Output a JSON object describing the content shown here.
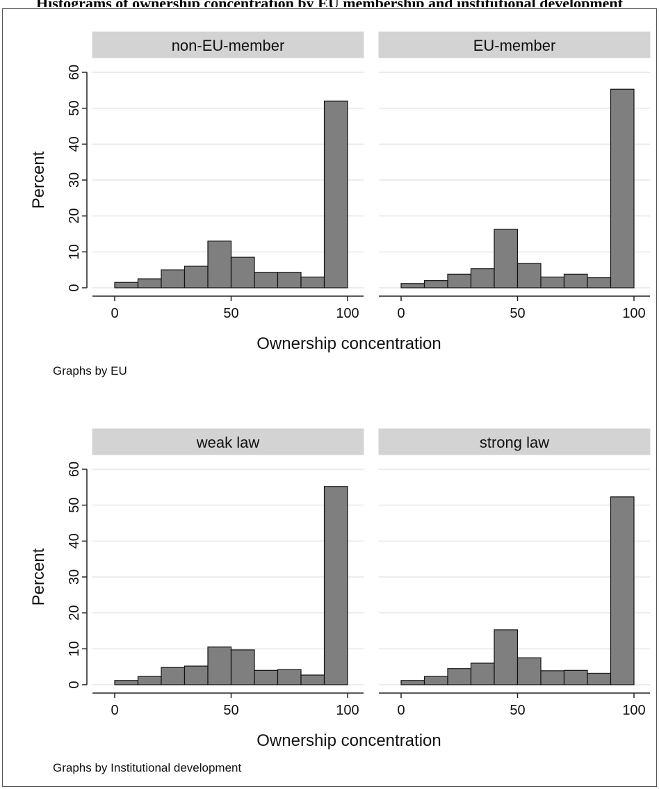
{
  "page_title": "Histograms of ownership concentration by EU membership and institutional development",
  "chart_data": [
    {
      "type": "bar",
      "group_note": "Graphs by EU",
      "xlabel": "Ownership concentration",
      "ylabel": "Percent",
      "xlim": [
        0,
        100
      ],
      "ylim": [
        0,
        60
      ],
      "xticks": [
        0,
        50,
        100
      ],
      "yticks": [
        0,
        10,
        20,
        30,
        40,
        50,
        60
      ],
      "grid": true,
      "bin_edges": [
        0,
        10,
        20,
        30,
        40,
        50,
        60,
        70,
        80,
        90,
        100
      ],
      "panels": [
        {
          "name": "non-EU-member",
          "values": [
            1.5,
            2.5,
            5.0,
            6.0,
            13.0,
            8.5,
            4.3,
            4.3,
            3.0,
            52.0
          ]
        },
        {
          "name": "EU-member",
          "values": [
            1.2,
            2.0,
            3.8,
            5.3,
            16.3,
            6.8,
            3.0,
            3.8,
            2.8,
            55.3
          ]
        }
      ]
    },
    {
      "type": "bar",
      "group_note": "Graphs by Institutional development",
      "xlabel": "Ownership concentration",
      "ylabel": "Percent",
      "xlim": [
        0,
        100
      ],
      "ylim": [
        0,
        60
      ],
      "xticks": [
        0,
        50,
        100
      ],
      "yticks": [
        0,
        10,
        20,
        30,
        40,
        50,
        60
      ],
      "grid": true,
      "bin_edges": [
        0,
        10,
        20,
        30,
        40,
        50,
        60,
        70,
        80,
        90,
        100
      ],
      "panels": [
        {
          "name": "weak law",
          "values": [
            1.2,
            2.3,
            4.8,
            5.2,
            10.5,
            9.7,
            4.0,
            4.2,
            2.7,
            55.2
          ]
        },
        {
          "name": "strong law",
          "values": [
            1.2,
            2.3,
            4.5,
            6.0,
            15.3,
            7.5,
            3.9,
            4.0,
            3.2,
            52.3
          ]
        }
      ]
    }
  ],
  "colors": {
    "bar_fill": "#7f7f7f",
    "bar_stroke": "#111111",
    "strip_fill": "#d3d3d3",
    "grid": "#e6e6e6",
    "axis": "#222222"
  }
}
